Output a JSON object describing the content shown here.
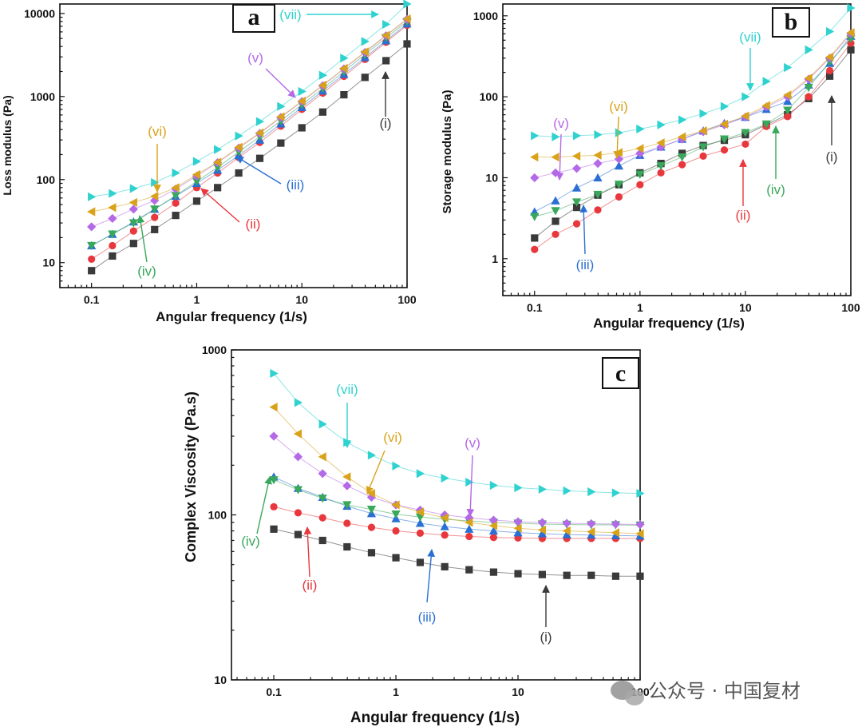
{
  "series_colors": {
    "i": "#3a3a3a",
    "ii": "#e8383d",
    "iii": "#2a6fd4",
    "iv": "#38a85a",
    "v": "#b469e6",
    "vi": "#d9a21b",
    "vii": "#2fd2cf"
  },
  "series_markers": {
    "i": "square",
    "ii": "circle",
    "iii": "triangle-up",
    "iv": "triangle-down",
    "v": "diamond",
    "vi": "triangle-left",
    "vii": "triangle-right"
  },
  "watermark": {
    "icon": "wechat-icon",
    "text": "公众号 · 中国复材"
  },
  "chart_data": [
    {
      "type": "line",
      "panel": "a",
      "title": "",
      "xlabel": "Angular frequency (1/s)",
      "ylabel": "Loss modulus (Pa)",
      "xscale": "log",
      "yscale": "log",
      "xlim": [
        0.05,
        100
      ],
      "ylim": [
        5,
        13000
      ],
      "xticks": [
        0.1,
        1,
        10,
        100
      ],
      "xtick_labels": [
        "0.1",
        "1",
        "10",
        "100"
      ],
      "yticks": [
        10,
        100,
        1000,
        10000
      ],
      "ytick_labels": [
        "10",
        "100",
        "1000",
        "10000"
      ],
      "x": [
        0.1,
        0.158,
        0.251,
        0.398,
        0.631,
        1,
        1.58,
        2.51,
        3.98,
        6.31,
        10,
        15.8,
        25.1,
        39.8,
        63.1,
        100
      ],
      "series": [
        {
          "name": "i",
          "values": [
            8,
            12,
            17,
            25,
            37,
            55,
            80,
            120,
            180,
            275,
            420,
            650,
            1050,
            1700,
            2700,
            4300
          ]
        },
        {
          "name": "ii",
          "values": [
            11,
            16,
            24,
            35,
            52,
            80,
            120,
            185,
            280,
            440,
            700,
            1100,
            1750,
            2800,
            4500,
            7200
          ]
        },
        {
          "name": "iii",
          "values": [
            16,
            22,
            31,
            44,
            63,
            90,
            130,
            195,
            300,
            470,
            740,
            1170,
            1850,
            2950,
            4700,
            7500
          ]
        },
        {
          "name": "iv",
          "values": [
            16,
            22,
            30,
            44,
            64,
            95,
            140,
            215,
            330,
            510,
            800,
            1250,
            2000,
            3200,
            5100,
            8000
          ]
        },
        {
          "name": "v",
          "values": [
            27,
            34,
            44,
            56,
            77,
            110,
            160,
            240,
            360,
            560,
            870,
            1350,
            2150,
            3400,
            5400,
            8500
          ]
        },
        {
          "name": "vi",
          "values": [
            41,
            46,
            53,
            63,
            80,
            115,
            162,
            245,
            365,
            570,
            880,
            1370,
            2180,
            3450,
            5450,
            8600
          ]
        },
        {
          "name": "vii",
          "values": [
            62,
            68,
            78,
            92,
            120,
            165,
            230,
            335,
            500,
            760,
            1150,
            1800,
            2900,
            4600,
            7400,
            13000
          ]
        }
      ],
      "annotations": [
        {
          "text": "(vii)",
          "series": "vii"
        },
        {
          "text": "(v)",
          "series": "v"
        },
        {
          "text": "(vi)",
          "series": "vi"
        },
        {
          "text": "(i)",
          "series": "i"
        },
        {
          "text": "(iii)",
          "series": "iii"
        },
        {
          "text": "(ii)",
          "series": "ii"
        },
        {
          "text": "(iv)",
          "series": "iv"
        }
      ]
    },
    {
      "type": "line",
      "panel": "b",
      "title": "",
      "xlabel": "Angular frequency (1/s)",
      "ylabel": "Storage modulus (Pa)",
      "xscale": "log",
      "yscale": "log",
      "xlim": [
        0.05,
        100
      ],
      "ylim": [
        0.35,
        1400
      ],
      "xticks": [
        0.1,
        1,
        10,
        100
      ],
      "xtick_labels": [
        "0.1",
        "1",
        "10",
        "100"
      ],
      "yticks": [
        1,
        10,
        100,
        1000
      ],
      "ytick_labels": [
        "1",
        "10",
        "100",
        "1000"
      ],
      "x": [
        0.1,
        0.158,
        0.251,
        0.398,
        0.631,
        1,
        1.58,
        2.51,
        3.98,
        6.31,
        10,
        15.8,
        25.1,
        39.8,
        63.1,
        100
      ],
      "series": [
        {
          "name": "i",
          "values": [
            1.8,
            2.9,
            4.3,
            6.1,
            8.2,
            11.5,
            15,
            20,
            25,
            29,
            34,
            45,
            60,
            95,
            180,
            380
          ]
        },
        {
          "name": "ii",
          "values": [
            1.3,
            2.0,
            2.7,
            4.0,
            5.8,
            8.2,
            11.5,
            14.5,
            18.5,
            22,
            26,
            43,
            57,
            100,
            210,
            460
          ]
        },
        {
          "name": "iii",
          "values": [
            3.8,
            5.2,
            7.5,
            10,
            14,
            19,
            24,
            30,
            38,
            47,
            56,
            70,
            88,
            140,
            260,
            560
          ]
        },
        {
          "name": "iv",
          "values": [
            3.3,
            3.9,
            5.0,
            6.2,
            8.3,
            11,
            14,
            18,
            24,
            30,
            36,
            46,
            68,
            130,
            270,
            520
          ]
        },
        {
          "name": "v",
          "values": [
            10,
            11.5,
            13,
            15,
            17,
            20,
            24,
            30,
            37,
            45,
            56,
            75,
            100,
            165,
            300,
            600
          ]
        },
        {
          "name": "vi",
          "values": [
            18,
            18,
            18.5,
            19,
            20.5,
            23,
            27,
            32,
            38,
            46,
            58,
            78,
            105,
            170,
            310,
            620
          ]
        },
        {
          "name": "vii",
          "values": [
            33,
            32,
            33,
            34,
            36,
            40,
            45,
            52,
            62,
            76,
            100,
            155,
            230,
            380,
            640,
            1250
          ]
        }
      ],
      "annotations": [
        {
          "text": "(vii)",
          "series": "vii"
        },
        {
          "text": "(vi)",
          "series": "vi"
        },
        {
          "text": "(v)",
          "series": "v"
        },
        {
          "text": "(iii)",
          "series": "iii"
        },
        {
          "text": "(ii)",
          "series": "ii"
        },
        {
          "text": "(iv)",
          "series": "iv"
        },
        {
          "text": "(i)",
          "series": "i"
        }
      ]
    },
    {
      "type": "line",
      "panel": "c",
      "title": "",
      "xlabel": "Angular frequency (1/s)",
      "ylabel": "Complex Viscosity (Pa.s)",
      "xscale": "log",
      "yscale": "log",
      "xlim": [
        0.045,
        100
      ],
      "ylim": [
        10,
        1000
      ],
      "xticks": [
        0.1,
        1,
        10,
        100
      ],
      "xtick_labels": [
        "0.1",
        "1",
        "10",
        "100"
      ],
      "yticks": [
        10,
        100,
        1000
      ],
      "ytick_labels": [
        "10",
        "100",
        "1000"
      ],
      "x": [
        0.1,
        0.158,
        0.251,
        0.398,
        0.631,
        1,
        1.58,
        2.51,
        3.98,
        6.31,
        10,
        15.8,
        25.1,
        39.8,
        63.1,
        100
      ],
      "series": [
        {
          "name": "i",
          "values": [
            82,
            76,
            70,
            64,
            59,
            55,
            51.5,
            48.5,
            46.5,
            45,
            44,
            43.5,
            43,
            43,
            42.5,
            42.5
          ]
        },
        {
          "name": "ii",
          "values": [
            112,
            103,
            96,
            89,
            84,
            80,
            77.5,
            75.5,
            74,
            73,
            72.5,
            72,
            72,
            72,
            72,
            72
          ]
        },
        {
          "name": "iii",
          "values": [
            170,
            145,
            128,
            113,
            102,
            95,
            89,
            85,
            82,
            80,
            78,
            77,
            76,
            75.5,
            75,
            74.5
          ]
        },
        {
          "name": "iv",
          "values": [
            163,
            142,
            126,
            115,
            108,
            101,
            97,
            94,
            92,
            90,
            89,
            88,
            87.5,
            87,
            87,
            86.5
          ]
        },
        {
          "name": "v",
          "values": [
            300,
            225,
            178,
            150,
            128,
            115,
            107,
            100,
            96,
            93,
            91,
            90,
            89,
            88.5,
            88,
            87.5
          ]
        },
        {
          "name": "vi",
          "values": [
            450,
            310,
            225,
            170,
            135,
            115,
            104,
            96,
            90,
            86,
            83,
            81,
            80,
            79,
            78,
            77
          ]
        },
        {
          "name": "vii",
          "values": [
            720,
            480,
            355,
            275,
            230,
            198,
            178,
            167,
            158,
            151,
            146,
            143,
            140,
            138,
            136,
            135
          ]
        }
      ],
      "annotations": [
        {
          "text": "(vii)",
          "series": "vii"
        },
        {
          "text": "(vi)",
          "series": "vi"
        },
        {
          "text": "(v)",
          "series": "v"
        },
        {
          "text": "(iv)",
          "series": "iv"
        },
        {
          "text": "(ii)",
          "series": "ii"
        },
        {
          "text": "(iii)",
          "series": "iii"
        },
        {
          "text": "(i)",
          "series": "i"
        }
      ]
    }
  ]
}
